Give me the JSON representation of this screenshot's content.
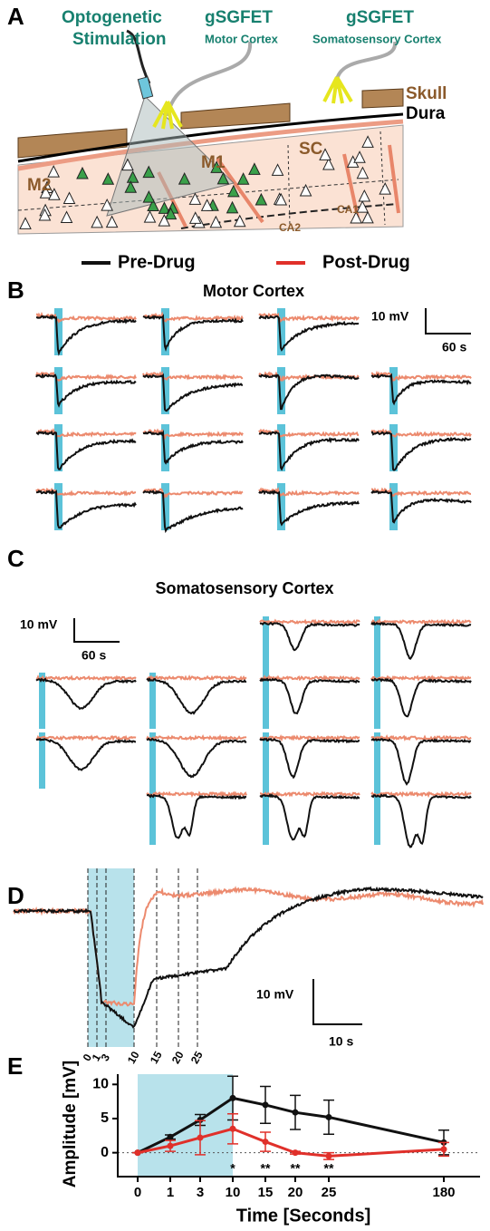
{
  "panel_labels": [
    "A",
    "B",
    "C",
    "D",
    "E"
  ],
  "panel_a": {
    "stimulation_label": [
      "Optogenetic",
      "Stimulation"
    ],
    "probe_1": {
      "name": "gSGFET",
      "region": "Motor Cortex"
    },
    "probe_2": {
      "name": "gSGFET",
      "region": "Somatosensory Cortex"
    },
    "layers": [
      "Skull",
      "Dura"
    ],
    "regions": [
      "M2",
      "M1",
      "SC",
      "CA1",
      "CA2"
    ]
  },
  "legend": [
    {
      "name": "Pre-Drug",
      "color": "#111111"
    },
    {
      "name": "Post-Drug",
      "color": "#e0302a"
    }
  ],
  "panel_b": {
    "title": "Motor Cortex",
    "scale_bar": {
      "y": "10 mV",
      "x": "60 s"
    }
  },
  "panel_c": {
    "title": "Somatosensory Cortex",
    "scale_bar": {
      "y": "10 mV",
      "x": "60 s"
    }
  },
  "panel_d": {
    "scale_bar": {
      "y": "10 mV",
      "x": "10 s"
    },
    "markers": [
      0,
      1,
      3,
      10,
      15,
      20,
      25
    ]
  },
  "chart_data": {
    "type": "line",
    "x_label": "Time [Seconds]",
    "y_label": "Amplitude [mV]",
    "categories": [
      "0",
      "1",
      "3",
      "10",
      "15",
      "20",
      "25",
      "180"
    ],
    "series": [
      {
        "name": "Pre-Drug",
        "color": "#111111",
        "values": [
          0,
          2.3,
          4.8,
          8,
          7,
          5.9,
          5.2,
          1.5
        ],
        "errors": [
          0,
          0.3,
          0.8,
          3.2,
          2.7,
          2.5,
          2.5,
          1.8
        ]
      },
      {
        "name": "Post-Drug",
        "color": "#e0302a",
        "values": [
          0,
          1,
          2.2,
          3.5,
          1.6,
          0,
          -0.5,
          0.5
        ],
        "errors": [
          0,
          0.8,
          2.5,
          2.2,
          1.4,
          0.2,
          0.5,
          1.0
        ]
      }
    ],
    "significance": [
      null,
      null,
      null,
      "*",
      "**",
      "**",
      "**",
      null
    ],
    "ylim": [
      -3.5,
      11.5
    ],
    "yticks": [
      0,
      5,
      10
    ]
  }
}
